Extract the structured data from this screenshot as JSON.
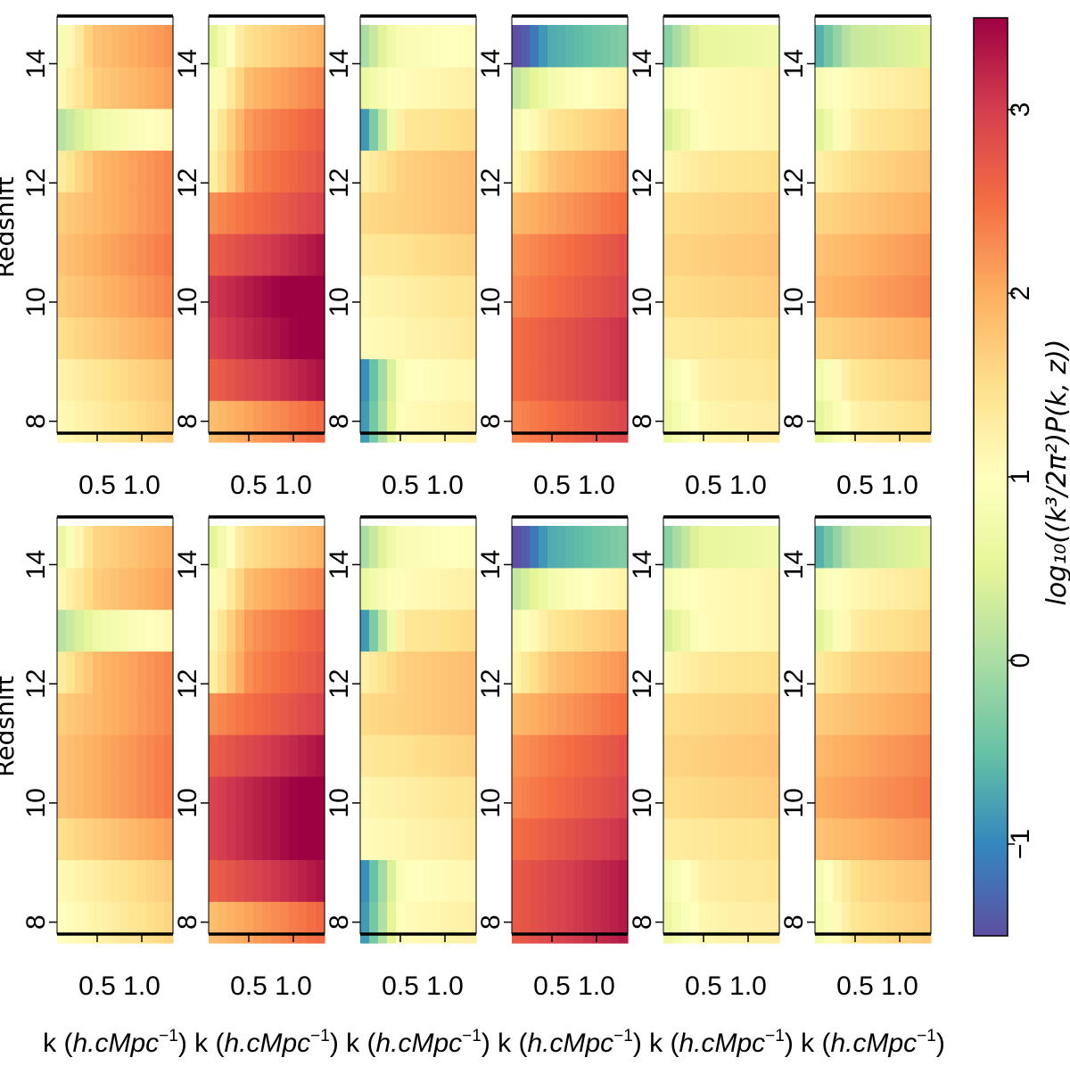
{
  "chart_data": {
    "type": "heatmap",
    "grid": {
      "rows": 2,
      "cols": 6
    },
    "ylabel": "Redshift",
    "xlabel": "k (h.cMpc⁻¹)",
    "xlabel_parts": {
      "base": "k (",
      "italic": "h.cMpc",
      "sup": "−1",
      "close": ")"
    },
    "x_range": [
      0.05,
      1.35
    ],
    "y_range": [
      7.8,
      14.8
    ],
    "x_ticks": [
      0.5,
      1.0
    ],
    "x_tick_labels": [
      "0.5",
      "1.0"
    ],
    "y_ticks": [
      8,
      10,
      12,
      14
    ],
    "y_tick_labels": [
      "8",
      "10",
      "12",
      "14"
    ],
    "k_bins": [
      0.1,
      0.2,
      0.3,
      0.4,
      0.5,
      0.6,
      0.7,
      0.8,
      0.9,
      1.0,
      1.1,
      1.2,
      1.3
    ],
    "z_bins": [
      8.0,
      8.7,
      9.4,
      10.1,
      10.8,
      11.5,
      12.2,
      12.9,
      13.6,
      14.3
    ],
    "colorbar": {
      "label": "log₁₀((k³/2π²)P(k, z))",
      "min": -1.5,
      "max": 3.5,
      "ticks": [
        -1,
        0,
        1,
        2,
        3
      ],
      "tick_labels": [
        "−1",
        "0",
        "1",
        "2",
        "3"
      ],
      "colormap": "Spectral_r",
      "stops": [
        "#5e4fa2",
        "#3288bd",
        "#66c2a5",
        "#abdda4",
        "#e6f598",
        "#ffffbf",
        "#fee08b",
        "#fdae61",
        "#f46d43",
        "#d53e4f",
        "#9e0142"
      ]
    },
    "panels": [
      {
        "row": 0,
        "col": 0,
        "redshift_profile": [
          1.4,
          1.5,
          1.8,
          2.0,
          2.1,
          2.0,
          2.0,
          0.8,
          1.8,
          1.9
        ],
        "k_start": 0.5,
        "trend": 0.6,
        "lowz_k": 0.0
      },
      {
        "row": 0,
        "col": 1,
        "redshift_profile": [
          2.2,
          3.0,
          3.3,
          3.4,
          3.0,
          2.6,
          2.4,
          2.3,
          2.0,
          1.6
        ],
        "k_start": 1.0,
        "trend": 0.7,
        "lowz_k": 0.0
      },
      {
        "row": 0,
        "col": 2,
        "redshift_profile": [
          1.1,
          1.0,
          1.2,
          1.3,
          1.5,
          1.7,
          1.7,
          1.4,
          1.1,
          0.9
        ],
        "k_start": 0.4,
        "trend": 0.3,
        "lowz_k": -1.6
      },
      {
        "row": 0,
        "col": 3,
        "redshift_profile": [
          2.6,
          2.8,
          2.8,
          2.6,
          2.5,
          2.2,
          1.9,
          1.5,
          0.9,
          -0.6
        ],
        "k_start": 0.5,
        "trend": 0.6,
        "lowz_k": 0.0
      },
      {
        "row": 0,
        "col": 4,
        "redshift_profile": [
          1.2,
          1.3,
          1.4,
          1.6,
          1.7,
          1.6,
          1.4,
          1.1,
          1.1,
          0.6
        ],
        "k_start": 0.2,
        "trend": 0.2,
        "lowz_k": -0.4
      },
      {
        "row": 0,
        "col": 5,
        "redshift_profile": [
          1.3,
          1.5,
          1.8,
          2.1,
          2.0,
          1.8,
          1.6,
          1.4,
          1.2,
          0.3
        ],
        "k_start": 0.2,
        "trend": 0.4,
        "lowz_k": -0.5
      },
      {
        "row": 1,
        "col": 0,
        "redshift_profile": [
          1.3,
          1.4,
          1.8,
          2.1,
          2.1,
          2.0,
          2.0,
          0.8,
          1.8,
          1.7
        ],
        "k_start": 0.5,
        "trend": 0.6,
        "lowz_k": 0.0
      },
      {
        "row": 1,
        "col": 1,
        "redshift_profile": [
          2.2,
          3.0,
          3.3,
          3.3,
          3.0,
          2.6,
          2.4,
          2.3,
          2.0,
          1.6
        ],
        "k_start": 1.0,
        "trend": 0.7,
        "lowz_k": 0.0
      },
      {
        "row": 1,
        "col": 2,
        "redshift_profile": [
          1.1,
          1.0,
          1.2,
          1.3,
          1.5,
          1.7,
          1.7,
          1.4,
          1.1,
          0.9
        ],
        "k_start": 0.4,
        "trend": 0.3,
        "lowz_k": -1.6
      },
      {
        "row": 1,
        "col": 3,
        "redshift_profile": [
          3.0,
          3.0,
          2.8,
          2.6,
          2.5,
          2.2,
          1.9,
          1.5,
          0.9,
          -0.6
        ],
        "k_start": 0.5,
        "trend": 0.6,
        "lowz_k": 0.0
      },
      {
        "row": 1,
        "col": 4,
        "redshift_profile": [
          1.2,
          1.3,
          1.4,
          1.6,
          1.7,
          1.6,
          1.4,
          1.1,
          1.1,
          0.6
        ],
        "k_start": 0.2,
        "trend": 0.2,
        "lowz_k": -0.4
      },
      {
        "row": 1,
        "col": 5,
        "redshift_profile": [
          1.5,
          1.6,
          2.0,
          2.2,
          2.1,
          1.9,
          1.7,
          1.4,
          1.2,
          0.3
        ],
        "k_start": 0.2,
        "trend": 0.4,
        "lowz_k": -0.5
      }
    ]
  }
}
